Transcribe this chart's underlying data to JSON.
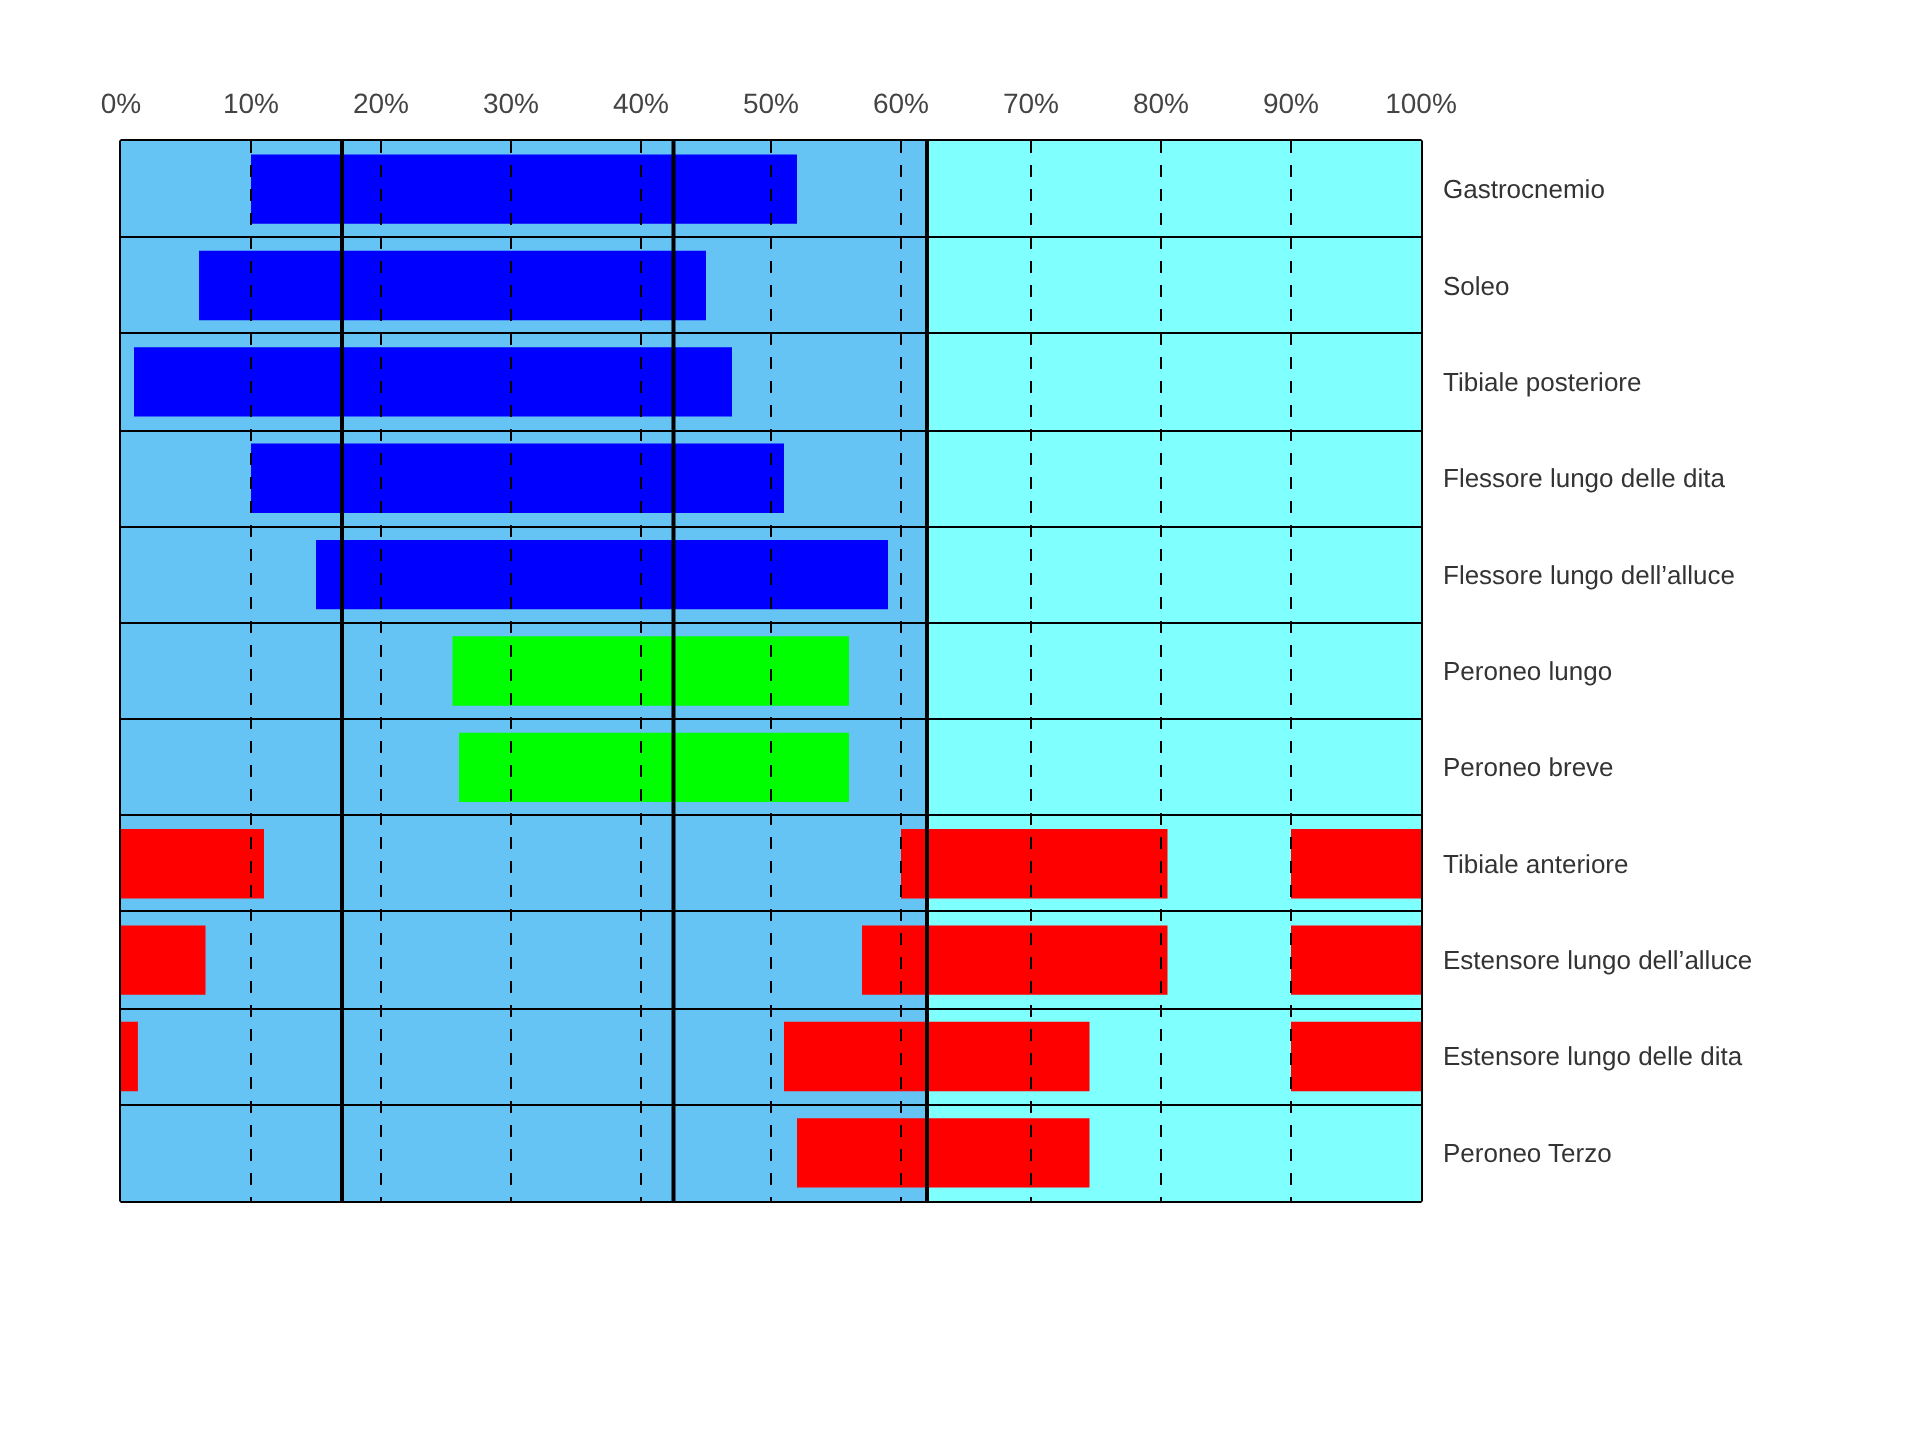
{
  "chart_data": {
    "type": "bar",
    "orientation": "horizontal",
    "categories": [
      "Gastrocnemio",
      "Soleo",
      "Tibiale posteriore",
      "Flessore lungo delle dita",
      "Flessore lungo dell’alluce",
      "Peroneo lungo",
      "Peroneo breve",
      "Tibiale anteriore",
      "Estensore lungo dell’alluce",
      "Estensore lungo delle dita",
      "Peroneo Terzo"
    ],
    "series": [
      {
        "color": "#0000ff",
        "base": [
          10,
          6,
          1,
          10,
          15,
          null,
          null,
          null,
          null,
          null,
          null
        ],
        "values": [
          42,
          39,
          46,
          41,
          44,
          null,
          null,
          null,
          null,
          null,
          null
        ]
      },
      {
        "color": "#00ff00",
        "base": [
          null,
          null,
          null,
          null,
          null,
          25.5,
          26,
          null,
          null,
          null,
          null
        ],
        "values": [
          null,
          null,
          null,
          null,
          null,
          30.5,
          30,
          null,
          null,
          null,
          null
        ]
      },
      {
        "color": "#ff0000",
        "base": [
          null,
          null,
          null,
          null,
          null,
          null,
          null,
          0,
          0,
          0,
          null
        ],
        "values": [
          null,
          null,
          null,
          null,
          null,
          null,
          null,
          11,
          6.5,
          1.3,
          null
        ]
      },
      {
        "color": "#ff0000",
        "base": [
          null,
          null,
          null,
          null,
          null,
          null,
          null,
          60,
          57,
          51,
          52
        ],
        "values": [
          null,
          null,
          null,
          null,
          null,
          null,
          null,
          20.5,
          23.5,
          23.5,
          22.5
        ]
      },
      {
        "color": "#ff0000",
        "base": [
          null,
          null,
          null,
          null,
          null,
          null,
          null,
          90,
          90,
          90,
          null
        ],
        "values": [
          null,
          null,
          null,
          null,
          null,
          null,
          null,
          10,
          10,
          10,
          null
        ]
      }
    ],
    "xlim": [
      0,
      100
    ],
    "xticks": [
      {
        "value": 0,
        "label": "0%"
      },
      {
        "value": 10,
        "label": "10%"
      },
      {
        "value": 20,
        "label": "20%"
      },
      {
        "value": 30,
        "label": "30%"
      },
      {
        "value": 40,
        "label": "40%"
      },
      {
        "value": 50,
        "label": "50%"
      },
      {
        "value": 60,
        "label": "60%"
      },
      {
        "value": 70,
        "label": "70%"
      },
      {
        "value": 80,
        "label": "80%"
      },
      {
        "value": 90,
        "label": "90%"
      },
      {
        "value": 100,
        "label": "100%"
      }
    ],
    "bands": [
      {
        "axis": "x",
        "from": 0,
        "to": 62,
        "color": "#66c4f4"
      },
      {
        "axis": "x",
        "from": 62,
        "to": 100,
        "color": "#80ffff"
      }
    ],
    "ref_lines": [
      {
        "axis": "x",
        "value": 17,
        "color": "#000000"
      },
      {
        "axis": "x",
        "value": 42.5,
        "color": "#000000"
      },
      {
        "axis": "x",
        "value": 62,
        "color": "#000000"
      }
    ],
    "grid": true
  }
}
